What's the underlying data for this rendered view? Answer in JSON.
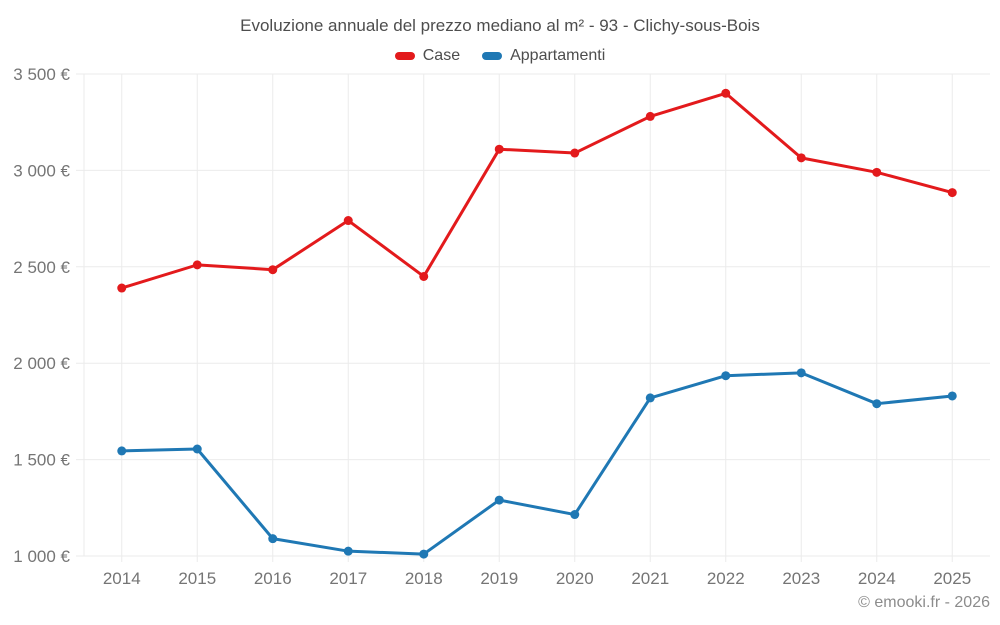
{
  "page": {
    "copyright": "© emooki.fr - 2026"
  },
  "chart_data": {
    "type": "line",
    "title": "Evoluzione annuale del prezzo mediano al m² - 93 - Clichy-sous-Bois",
    "x": [
      2014,
      2015,
      2016,
      2017,
      2018,
      2019,
      2020,
      2021,
      2022,
      2023,
      2024,
      2025
    ],
    "x_tick_labels": [
      "2014",
      "2015",
      "2016",
      "2017",
      "2018",
      "2019",
      "2020",
      "2021",
      "2022",
      "2023",
      "2024",
      "2025"
    ],
    "series": [
      {
        "name": "Case",
        "color": "#e31a1c",
        "values": [
          2390,
          2510,
          2485,
          2740,
          2450,
          3110,
          3090,
          3280,
          3400,
          3065,
          2990,
          2885
        ]
      },
      {
        "name": "Appartamenti",
        "color": "#1f78b4",
        "values": [
          1545,
          1555,
          1090,
          1025,
          1010,
          1290,
          1215,
          1820,
          1935,
          1950,
          1790,
          1830
        ]
      }
    ],
    "ylim": [
      1000,
      3500
    ],
    "y_ticks": [
      3500,
      3000,
      2500,
      2000,
      1500,
      1000
    ],
    "y_tick_labels": [
      "3 500 €",
      "3 000 €",
      "2 500 €",
      "2 000 €",
      "1 500 €",
      "1 000 €"
    ],
    "grid": true,
    "legend_position": "top"
  },
  "style": {
    "background": "#ffffff",
    "grid_color": "#ebebeb",
    "tick_text_color": "#757575",
    "title_color": "#4d4d4d",
    "legend_text_color": "#4d4d4d",
    "footer_color": "#8c8c8c"
  }
}
